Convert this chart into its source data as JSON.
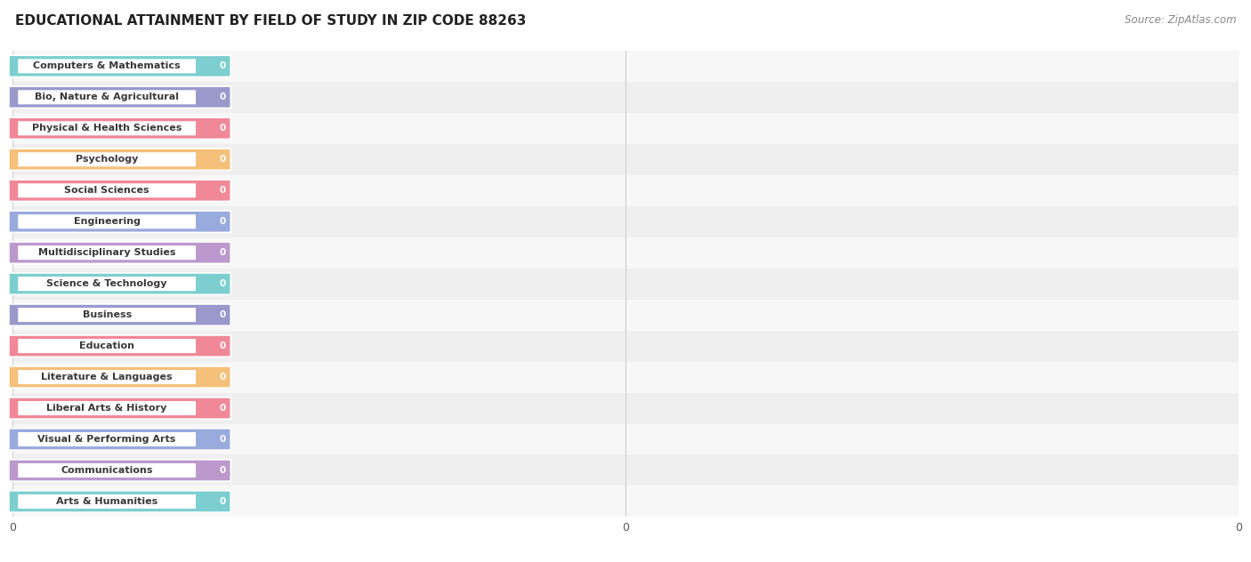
{
  "title": "EDUCATIONAL ATTAINMENT BY FIELD OF STUDY IN ZIP CODE 88263",
  "source": "Source: ZipAtlas.com",
  "categories": [
    "Computers & Mathematics",
    "Bio, Nature & Agricultural",
    "Physical & Health Sciences",
    "Psychology",
    "Social Sciences",
    "Engineering",
    "Multidisciplinary Studies",
    "Science & Technology",
    "Business",
    "Education",
    "Literature & Languages",
    "Liberal Arts & History",
    "Visual & Performing Arts",
    "Communications",
    "Arts & Humanities"
  ],
  "values": [
    0,
    0,
    0,
    0,
    0,
    0,
    0,
    0,
    0,
    0,
    0,
    0,
    0,
    0,
    0
  ],
  "bar_colors": [
    "#7dcfcf",
    "#9999cc",
    "#f08898",
    "#f5c07a",
    "#f08898",
    "#99aadd",
    "#bb99cc",
    "#7dcfcf",
    "#9999cc",
    "#f08898",
    "#f5c07a",
    "#f08898",
    "#99aadd",
    "#bb99cc",
    "#7dcfcf"
  ],
  "xlim_max": 1,
  "background_color": "#ffffff",
  "row_bg_colors": [
    "#f7f7f7",
    "#efefef"
  ],
  "title_fontsize": 11,
  "source_fontsize": 8.5,
  "label_fontsize": 8,
  "value_fontsize": 7.5,
  "grid_color": "#d0d0d0"
}
